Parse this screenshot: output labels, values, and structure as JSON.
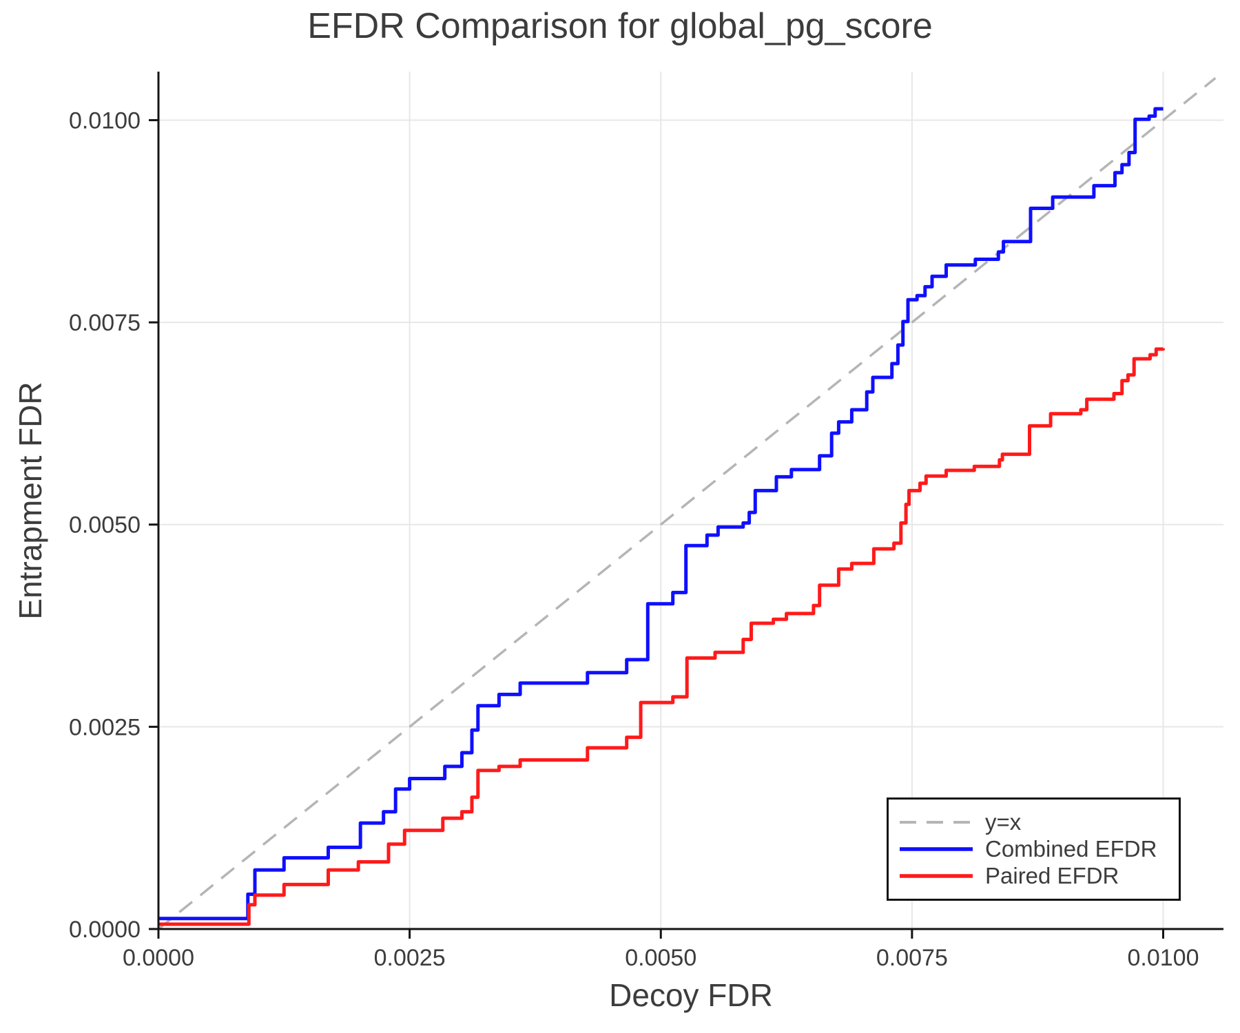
{
  "chart_data": {
    "type": "line",
    "title": "EFDR Comparison for global_pg_score",
    "xlabel": "Decoy FDR",
    "ylabel": "Entrapment FDR",
    "xlim": [
      0,
      0.0106
    ],
    "ylim": [
      0,
      0.0106
    ],
    "grid": true,
    "legend_position": "lower right",
    "x_ticks": [
      0.0,
      0.0025,
      0.005,
      0.0075,
      0.01
    ],
    "x_tick_labels": [
      "0.0000",
      "0.0025",
      "0.0050",
      "0.0075",
      "0.0100"
    ],
    "y_ticks": [
      0.0,
      0.0025,
      0.005,
      0.0075,
      0.01
    ],
    "y_tick_labels": [
      "0.0000",
      "0.0025",
      "0.0050",
      "0.0075",
      "0.0100"
    ],
    "colors": {
      "grid": "#e7e7e7",
      "spine": "#141414",
      "text": "#3c3c3c",
      "identity": "#b5b5b5",
      "combined": "#0f0fff",
      "paired": "#ff1a1a"
    },
    "series": [
      {
        "name": "y=x",
        "color": "#b5b5b5",
        "width": 3.5,
        "dash": "24 15",
        "step": false,
        "points": [
          [
            0,
            0
          ],
          [
            0.01052,
            0.01052
          ]
        ]
      },
      {
        "name": "Combined EFDR",
        "color": "#0f0fff",
        "width": 5,
        "dash": null,
        "step": true,
        "points": [
          [
            0.0,
            0.00013
          ],
          [
            0.00089,
            0.00043
          ],
          [
            0.00096,
            0.00073
          ],
          [
            0.00125,
            0.00088
          ],
          [
            0.00169,
            0.00101
          ],
          [
            0.00201,
            0.00131
          ],
          [
            0.00224,
            0.00145
          ],
          [
            0.00236,
            0.00173
          ],
          [
            0.0025,
            0.00186
          ],
          [
            0.00285,
            0.00201
          ],
          [
            0.00302,
            0.00218
          ],
          [
            0.00312,
            0.00246
          ],
          [
            0.00318,
            0.00276
          ],
          [
            0.00339,
            0.0029
          ],
          [
            0.0036,
            0.00304
          ],
          [
            0.00427,
            0.00317
          ],
          [
            0.00466,
            0.00333
          ],
          [
            0.00487,
            0.00402
          ],
          [
            0.00512,
            0.00416
          ],
          [
            0.00525,
            0.00474
          ],
          [
            0.00546,
            0.00487
          ],
          [
            0.00557,
            0.00497
          ],
          [
            0.00582,
            0.00502
          ],
          [
            0.00588,
            0.00515
          ],
          [
            0.00594,
            0.00542
          ],
          [
            0.00615,
            0.00559
          ],
          [
            0.0063,
            0.00568
          ],
          [
            0.00658,
            0.00585
          ],
          [
            0.0067,
            0.00613
          ],
          [
            0.00677,
            0.00627
          ],
          [
            0.0069,
            0.00642
          ],
          [
            0.00705,
            0.00664
          ],
          [
            0.00711,
            0.00682
          ],
          [
            0.0073,
            0.00699
          ],
          [
            0.00736,
            0.00722
          ],
          [
            0.00741,
            0.00751
          ],
          [
            0.00746,
            0.00778
          ],
          [
            0.00755,
            0.00783
          ],
          [
            0.00763,
            0.00794
          ],
          [
            0.0077,
            0.00807
          ],
          [
            0.00784,
            0.00821
          ],
          [
            0.00813,
            0.00828
          ],
          [
            0.00836,
            0.00837
          ],
          [
            0.00841,
            0.0085
          ],
          [
            0.00868,
            0.00891
          ],
          [
            0.0089,
            0.00905
          ],
          [
            0.00931,
            0.00919
          ],
          [
            0.00952,
            0.00935
          ],
          [
            0.00959,
            0.00945
          ],
          [
            0.00966,
            0.0096
          ],
          [
            0.00972,
            0.01001
          ],
          [
            0.00986,
            0.01005
          ],
          [
            0.00992,
            0.01014
          ],
          [
            0.01,
            0.01014
          ]
        ]
      },
      {
        "name": "Paired EFDR",
        "color": "#ff1a1a",
        "width": 5,
        "dash": null,
        "step": true,
        "points": [
          [
            0.0,
            6e-05
          ],
          [
            0.0009,
            0.0003
          ],
          [
            0.00096,
            0.00042
          ],
          [
            0.00125,
            0.00055
          ],
          [
            0.00169,
            0.00073
          ],
          [
            0.00199,
            0.00083
          ],
          [
            0.00229,
            0.00105
          ],
          [
            0.00245,
            0.00122
          ],
          [
            0.00283,
            0.00137
          ],
          [
            0.00302,
            0.00145
          ],
          [
            0.00312,
            0.00163
          ],
          [
            0.00318,
            0.00196
          ],
          [
            0.00339,
            0.00201
          ],
          [
            0.0036,
            0.00209
          ],
          [
            0.00427,
            0.00224
          ],
          [
            0.00466,
            0.00237
          ],
          [
            0.0048,
            0.0028
          ],
          [
            0.00512,
            0.00287
          ],
          [
            0.00526,
            0.00335
          ],
          [
            0.00554,
            0.00342
          ],
          [
            0.00582,
            0.00358
          ],
          [
            0.0059,
            0.00378
          ],
          [
            0.00612,
            0.00383
          ],
          [
            0.00625,
            0.0039
          ],
          [
            0.00652,
            0.004
          ],
          [
            0.00658,
            0.00425
          ],
          [
            0.00677,
            0.00445
          ],
          [
            0.0069,
            0.00452
          ],
          [
            0.00712,
            0.0047
          ],
          [
            0.00732,
            0.00477
          ],
          [
            0.00739,
            0.00502
          ],
          [
            0.00744,
            0.00525
          ],
          [
            0.00747,
            0.00542
          ],
          [
            0.00758,
            0.00551
          ],
          [
            0.00764,
            0.0056
          ],
          [
            0.00784,
            0.00567
          ],
          [
            0.00812,
            0.00572
          ],
          [
            0.00837,
            0.0058
          ],
          [
            0.0084,
            0.00587
          ],
          [
            0.00867,
            0.00622
          ],
          [
            0.00888,
            0.00637
          ],
          [
            0.00918,
            0.00642
          ],
          [
            0.00924,
            0.00655
          ],
          [
            0.00951,
            0.00662
          ],
          [
            0.00959,
            0.00678
          ],
          [
            0.00965,
            0.00685
          ],
          [
            0.00971,
            0.00705
          ],
          [
            0.00987,
            0.0071
          ],
          [
            0.00993,
            0.00717
          ],
          [
            0.01,
            0.00718
          ]
        ]
      }
    ]
  },
  "legend": {
    "items": [
      {
        "label": "y=x"
      },
      {
        "label": "Combined EFDR"
      },
      {
        "label": "Paired EFDR"
      }
    ]
  }
}
